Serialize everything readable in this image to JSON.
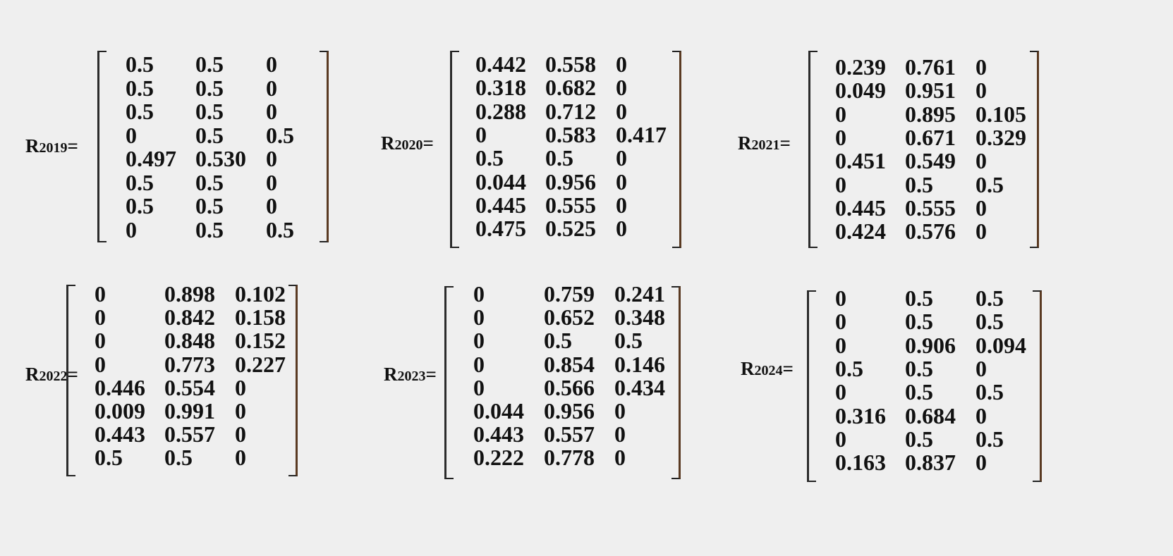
{
  "matrices": [
    {
      "label": "R",
      "year": "2019",
      "suffix": "=",
      "rows": [
        [
          "0.5",
          "0.5",
          "0"
        ],
        [
          "0.5",
          "0.5",
          "0"
        ],
        [
          "0.5",
          "0.5",
          "0"
        ],
        [
          "0",
          "0.5",
          "0.5"
        ],
        [
          "0.497",
          "0.530",
          "0"
        ],
        [
          "0.5",
          "0.5",
          "0"
        ],
        [
          "0.5",
          "0.5",
          "0"
        ],
        [
          "0",
          "0.5",
          "0.5"
        ]
      ]
    },
    {
      "label": "R",
      "year": "2020",
      "suffix": "=",
      "rows": [
        [
          "0.442",
          "0.558",
          "0"
        ],
        [
          "0.318",
          "0.682",
          "0"
        ],
        [
          "0.288",
          "0.712",
          "0"
        ],
        [
          "0",
          "0.583",
          "0.417"
        ],
        [
          "0.5",
          "0.5",
          "0"
        ],
        [
          "0.044",
          "0.956",
          "0"
        ],
        [
          "0.445",
          "0.555",
          "0"
        ],
        [
          "0.475",
          "0.525",
          "0"
        ]
      ]
    },
    {
      "label": "R",
      "year": "2021",
      "suffix": "=",
      "rows": [
        [
          "0.239",
          "0.761",
          "0"
        ],
        [
          "0.049",
          "0.951",
          "0"
        ],
        [
          "0",
          "0.895",
          "0.105"
        ],
        [
          "0",
          "0.671",
          "0.329"
        ],
        [
          "0.451",
          "0.549",
          "0"
        ],
        [
          "0",
          "0.5",
          "0.5"
        ],
        [
          "0.445",
          "0.555",
          "0"
        ],
        [
          "0.424",
          "0.576",
          "0"
        ]
      ]
    },
    {
      "label": "R",
      "year": "2022",
      "suffix": "=",
      "rows": [
        [
          "0",
          "0.898",
          "0.102"
        ],
        [
          "0",
          "0.842",
          "0.158"
        ],
        [
          "0",
          "0.848",
          "0.152"
        ],
        [
          "0",
          "0.773",
          "0.227"
        ],
        [
          "0.446",
          "0.554",
          "0"
        ],
        [
          "0.009",
          "0.991",
          "0"
        ],
        [
          "0.443",
          "0.557",
          "0"
        ],
        [
          "0.5",
          "0.5",
          "0"
        ]
      ]
    },
    {
      "label": "R",
      "year": "2023",
      "suffix": "=",
      "rows": [
        [
          "0",
          "0.759",
          "0.241"
        ],
        [
          "0",
          "0.652",
          "0.348"
        ],
        [
          "0",
          "0.5",
          "0.5"
        ],
        [
          "0",
          "0.854",
          "0.146"
        ],
        [
          "0",
          "0.566",
          "0.434"
        ],
        [
          "0.044",
          "0.956",
          "0"
        ],
        [
          "0.443",
          "0.557",
          "0"
        ],
        [
          "0.222",
          "0.778",
          "0"
        ]
      ]
    },
    {
      "label": "R",
      "year": "2024",
      "suffix": "=",
      "rows": [
        [
          "0",
          "0.5",
          "0.5"
        ],
        [
          "0",
          "0.5",
          "0.5"
        ],
        [
          "0",
          "0.906",
          "0.094"
        ],
        [
          "0.5",
          "0.5",
          "0"
        ],
        [
          "0",
          "0.5",
          "0.5"
        ],
        [
          "0.316",
          "0.684",
          "0"
        ],
        [
          "0",
          "0.5",
          "0.5"
        ],
        [
          "0.163",
          "0.837",
          "0"
        ]
      ]
    }
  ]
}
